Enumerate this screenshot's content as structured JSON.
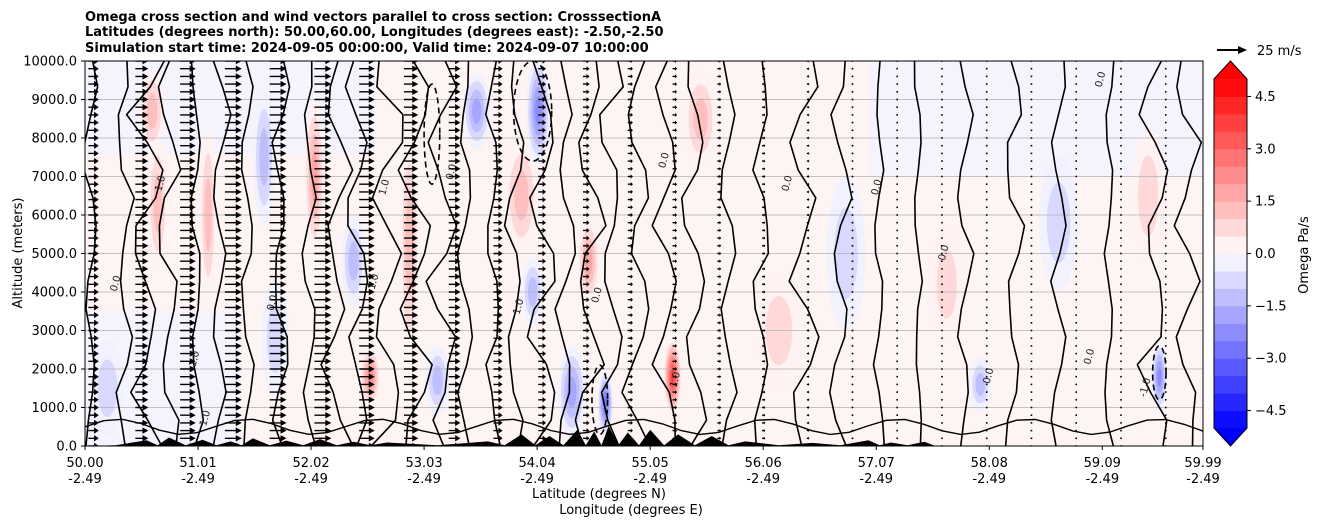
{
  "chart_data": {
    "type": "contour-cross-section",
    "title_lines": [
      "Omega cross section and wind vectors parallel to cross section: CrosssectionA",
      "Latitudes (degrees north): 50.00,60.00, Longitudes (degrees east): -2.50,-2.50",
      "Simulation start time: 2024-09-05 00:00:00, Valid time: 2024-09-07 10:00:00"
    ],
    "ylabel": "Altitude (meters)",
    "xlabel_line1": "Latitude (degrees N)",
    "xlabel_line2": "Longitude (degrees E)",
    "xlim": [
      50.0,
      59.99
    ],
    "ylim": [
      0,
      10000
    ],
    "yticks": [
      {
        "value": 0,
        "label": "0.0"
      },
      {
        "value": 1000,
        "label": "1000.0"
      },
      {
        "value": 2000,
        "label": "2000.0"
      },
      {
        "value": 3000,
        "label": "3000.0"
      },
      {
        "value": 4000,
        "label": "4000.0"
      },
      {
        "value": 5000,
        "label": "5000.0"
      },
      {
        "value": 6000,
        "label": "6000.0"
      },
      {
        "value": 7000,
        "label": "7000.0"
      },
      {
        "value": 8000,
        "label": "8000.0"
      },
      {
        "value": 9000,
        "label": "9000.0"
      },
      {
        "value": 10000,
        "label": "10000.0"
      }
    ],
    "xticks": [
      {
        "value": 50.0,
        "lat": "50.00",
        "lon": "-2.49"
      },
      {
        "value": 51.01,
        "lat": "51.01",
        "lon": "-2.49"
      },
      {
        "value": 52.02,
        "lat": "52.02",
        "lon": "-2.49"
      },
      {
        "value": 53.03,
        "lat": "53.03",
        "lon": "-2.49"
      },
      {
        "value": 54.04,
        "lat": "54.04",
        "lon": "-2.49"
      },
      {
        "value": 55.05,
        "lat": "55.05",
        "lon": "-2.49"
      },
      {
        "value": 56.06,
        "lat": "56.06",
        "lon": "-2.49"
      },
      {
        "value": 57.07,
        "lat": "57.07",
        "lon": "-2.49"
      },
      {
        "value": 58.08,
        "lat": "58.08",
        "lon": "-2.49"
      },
      {
        "value": 59.09,
        "lat": "59.09",
        "lon": "-2.49"
      },
      {
        "value": 59.99,
        "lat": "59.99",
        "lon": "-2.49"
      }
    ],
    "colorbar": {
      "label": "Omega Pa/s",
      "min": -5.0,
      "max": 5.0,
      "step": 0.5,
      "ticks": [
        {
          "value": 4.5,
          "label": "4.5"
        },
        {
          "value": 3.0,
          "label": "3.0"
        },
        {
          "value": 1.5,
          "label": "1.5"
        },
        {
          "value": 0.0,
          "label": "0.0"
        },
        {
          "value": -1.5,
          "label": "−1.5"
        },
        {
          "value": -3.0,
          "label": "−3.0"
        },
        {
          "value": -4.5,
          "label": "−4.5"
        }
      ]
    },
    "wind_key_label": "25 m/s",
    "contour_levels": [
      -1.0,
      0.0,
      1.0
    ],
    "contour_labels": [
      {
        "text": "0.0",
        "lat": 51.7,
        "alt": 3700
      },
      {
        "text": "1.0",
        "lat": 50.7,
        "alt": 6800
      },
      {
        "text": "1.0",
        "lat": 52.7,
        "alt": 6700
      },
      {
        "text": "0.0",
        "lat": 53.3,
        "alt": 7100
      },
      {
        "text": "-1.0",
        "lat": 52.6,
        "alt": 4200
      },
      {
        "text": "1.0",
        "lat": 53.9,
        "alt": 3600
      },
      {
        "text": "0.0",
        "lat": 54.6,
        "alt": 3900
      },
      {
        "text": "0.0",
        "lat": 55.2,
        "alt": 7400
      },
      {
        "text": "0.0",
        "lat": 56.3,
        "alt": 6800
      },
      {
        "text": "0.0",
        "lat": 57.1,
        "alt": 6700
      },
      {
        "text": "0.0",
        "lat": 57.7,
        "alt": 5000
      },
      {
        "text": "0.0",
        "lat": 58.1,
        "alt": 1800
      },
      {
        "text": "0.0",
        "lat": 59.0,
        "alt": 2300
      },
      {
        "text": "-1.0",
        "lat": 59.5,
        "alt": 1500
      },
      {
        "text": "0.0",
        "lat": 59.1,
        "alt": 9500
      },
      {
        "text": "0.0",
        "lat": 50.3,
        "alt": 4200
      },
      {
        "text": "1.0",
        "lat": 51.1,
        "alt": 700
      },
      {
        "text": "-1.0",
        "lat": 51.0,
        "alt": 2200
      },
      {
        "text": "1.0",
        "lat": 55.3,
        "alt": 1700
      }
    ],
    "omega_cells": [
      {
        "lat": 50.6,
        "alt": 8700,
        "w": 0.22,
        "h": 2200,
        "v": 1.3
      },
      {
        "lat": 50.65,
        "alt": 6300,
        "w": 0.18,
        "h": 3500,
        "v": 1.2
      },
      {
        "lat": 51.1,
        "alt": 6000,
        "w": 0.15,
        "h": 4500,
        "v": 1.5
      },
      {
        "lat": 51.6,
        "alt": 7500,
        "w": 0.2,
        "h": 3500,
        "v": -1.2
      },
      {
        "lat": 51.7,
        "alt": 2800,
        "w": 0.25,
        "h": 3000,
        "v": -1.0
      },
      {
        "lat": 52.05,
        "alt": 7000,
        "w": 0.18,
        "h": 4000,
        "v": 2.0
      },
      {
        "lat": 52.4,
        "alt": 4800,
        "w": 0.22,
        "h": 2400,
        "v": -1.3
      },
      {
        "lat": 52.55,
        "alt": 1800,
        "w": 0.18,
        "h": 1600,
        "v": 2.2
      },
      {
        "lat": 52.9,
        "alt": 5200,
        "w": 0.18,
        "h": 6000,
        "v": 1.3
      },
      {
        "lat": 53.15,
        "alt": 1700,
        "w": 0.22,
        "h": 1800,
        "v": -1.2
      },
      {
        "lat": 53.5,
        "alt": 8700,
        "w": 0.25,
        "h": 2000,
        "v": -1.6
      },
      {
        "lat": 53.9,
        "alt": 6500,
        "w": 0.3,
        "h": 3000,
        "v": 1.2
      },
      {
        "lat": 54.0,
        "alt": 4000,
        "w": 0.2,
        "h": 1800,
        "v": -1.1
      },
      {
        "lat": 54.05,
        "alt": 8700,
        "w": 0.22,
        "h": 2800,
        "v": -2.4
      },
      {
        "lat": 54.35,
        "alt": 1400,
        "w": 0.25,
        "h": 2400,
        "v": -1.8
      },
      {
        "lat": 54.5,
        "alt": 4800,
        "w": 0.2,
        "h": 2200,
        "v": 1.6
      },
      {
        "lat": 54.65,
        "alt": 1100,
        "w": 0.14,
        "h": 1700,
        "v": -2.8
      },
      {
        "lat": 55.25,
        "alt": 1800,
        "w": 0.16,
        "h": 2000,
        "v": 3.6
      },
      {
        "lat": 55.5,
        "alt": 8500,
        "w": 0.3,
        "h": 2500,
        "v": 1.1
      },
      {
        "lat": 56.2,
        "alt": 3000,
        "w": 0.4,
        "h": 3000,
        "v": 0.6
      },
      {
        "lat": 56.8,
        "alt": 5000,
        "w": 0.35,
        "h": 4000,
        "v": -0.6
      },
      {
        "lat": 57.7,
        "alt": 4200,
        "w": 0.3,
        "h": 3000,
        "v": 0.6
      },
      {
        "lat": 58.0,
        "alt": 1600,
        "w": 0.2,
        "h": 1400,
        "v": -1.3
      },
      {
        "lat": 58.7,
        "alt": 5800,
        "w": 0.35,
        "h": 3500,
        "v": -0.6
      },
      {
        "lat": 59.6,
        "alt": 1800,
        "w": 0.14,
        "h": 1800,
        "v": -2.2
      },
      {
        "lat": 59.5,
        "alt": 6500,
        "w": 0.3,
        "h": 3500,
        "v": 0.7
      },
      {
        "lat": 50.2,
        "alt": 1500,
        "w": 0.3,
        "h": 2500,
        "v": -0.6
      }
    ],
    "wind_columns": [
      {
        "lat": 50.03,
        "speed": 8
      },
      {
        "lat": 50.45,
        "speed": 10
      },
      {
        "lat": 50.85,
        "speed": 12
      },
      {
        "lat": 51.25,
        "speed": 13
      },
      {
        "lat": 51.65,
        "speed": 13
      },
      {
        "lat": 52.05,
        "speed": 13
      },
      {
        "lat": 52.45,
        "speed": 12
      },
      {
        "lat": 52.85,
        "speed": 11
      },
      {
        "lat": 53.25,
        "speed": 9
      },
      {
        "lat": 53.65,
        "speed": 7
      },
      {
        "lat": 54.05,
        "speed": 6
      },
      {
        "lat": 54.45,
        "speed": 5
      },
      {
        "lat": 54.85,
        "speed": 4
      },
      {
        "lat": 55.25,
        "speed": 3.5
      },
      {
        "lat": 55.65,
        "speed": 3
      },
      {
        "lat": 56.05,
        "speed": 2.5
      },
      {
        "lat": 56.45,
        "speed": 2
      },
      {
        "lat": 56.85,
        "speed": 1.5
      },
      {
        "lat": 57.25,
        "speed": 1
      },
      {
        "lat": 57.65,
        "speed": 0.8
      },
      {
        "lat": 58.05,
        "speed": 0.6
      },
      {
        "lat": 58.45,
        "speed": 0.6
      },
      {
        "lat": 58.85,
        "speed": 0.6
      },
      {
        "lat": 59.25,
        "speed": 0.6
      },
      {
        "lat": 59.65,
        "speed": 0.6
      }
    ],
    "terrain_peaks": [
      {
        "lat": 50.55,
        "alt": 150
      },
      {
        "lat": 50.75,
        "alt": 220
      },
      {
        "lat": 51.05,
        "alt": 160
      },
      {
        "lat": 51.3,
        "alt": 120
      },
      {
        "lat": 51.5,
        "alt": 200
      },
      {
        "lat": 51.8,
        "alt": 140
      },
      {
        "lat": 52.1,
        "alt": 180
      },
      {
        "lat": 52.4,
        "alt": 110
      },
      {
        "lat": 52.7,
        "alt": 90
      },
      {
        "lat": 53.6,
        "alt": 120
      },
      {
        "lat": 53.9,
        "alt": 300
      },
      {
        "lat": 54.15,
        "alt": 260
      },
      {
        "lat": 54.4,
        "alt": 420
      },
      {
        "lat": 54.55,
        "alt": 380
      },
      {
        "lat": 54.68,
        "alt": 520
      },
      {
        "lat": 54.85,
        "alt": 350
      },
      {
        "lat": 55.05,
        "alt": 420
      },
      {
        "lat": 55.3,
        "alt": 300
      },
      {
        "lat": 55.6,
        "alt": 260
      },
      {
        "lat": 55.9,
        "alt": 120
      },
      {
        "lat": 56.5,
        "alt": 80
      },
      {
        "lat": 57.0,
        "alt": 150
      },
      {
        "lat": 57.2,
        "alt": 90
      },
      {
        "lat": 57.5,
        "alt": 110
      }
    ]
  }
}
